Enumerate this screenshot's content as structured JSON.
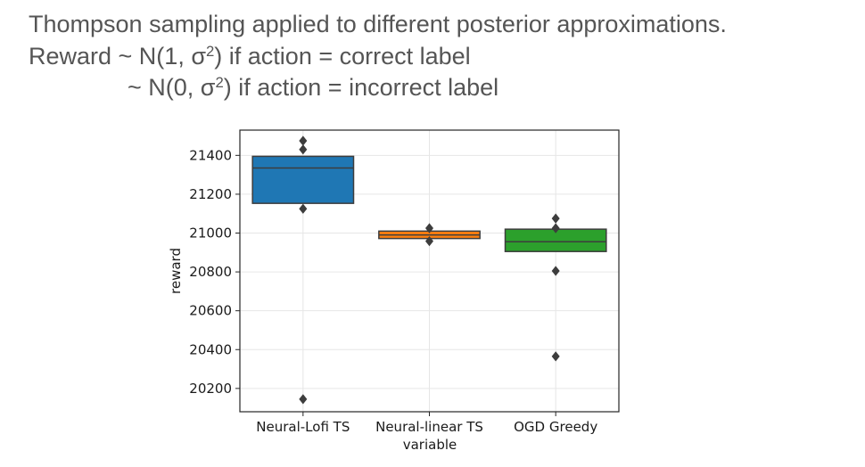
{
  "title": {
    "line1": "Thompson sampling applied to different posterior approximations.",
    "line2_prefix": "Reward ~ N(1, σ",
    "line2_sup": "2",
    "line2_suffix": ") if action = correct label",
    "line3_prefix": "~ N(0, σ",
    "line3_sup": "2",
    "line3_suffix": ") if action = incorrect label"
  },
  "chart_data": {
    "type": "boxplot",
    "xlabel": "variable",
    "ylabel": "reward",
    "ylim": [
      20080,
      21530
    ],
    "yticks": [
      20200,
      20400,
      20600,
      20800,
      21000,
      21200,
      21400
    ],
    "grid": true,
    "categories": [
      "Neural-Lofi TS",
      "Neural-linear TS",
      "OGD Greedy"
    ],
    "boxes": [
      {
        "name": "Neural-Lofi TS",
        "q1": 21153,
        "median": 21335,
        "q3": 21395,
        "outliers": [
          21475,
          21430,
          21125,
          20145
        ],
        "color": "#1f77b4"
      },
      {
        "name": "Neural-linear TS",
        "q1": 20972,
        "median": 20990,
        "q3": 21010,
        "outliers": [
          21025,
          20958
        ],
        "color": "#ff7f0e"
      },
      {
        "name": "OGD Greedy",
        "q1": 20905,
        "median": 20955,
        "q3": 21020,
        "outliers": [
          21075,
          21025,
          20805,
          20365
        ],
        "color": "#2ca02c"
      }
    ]
  }
}
